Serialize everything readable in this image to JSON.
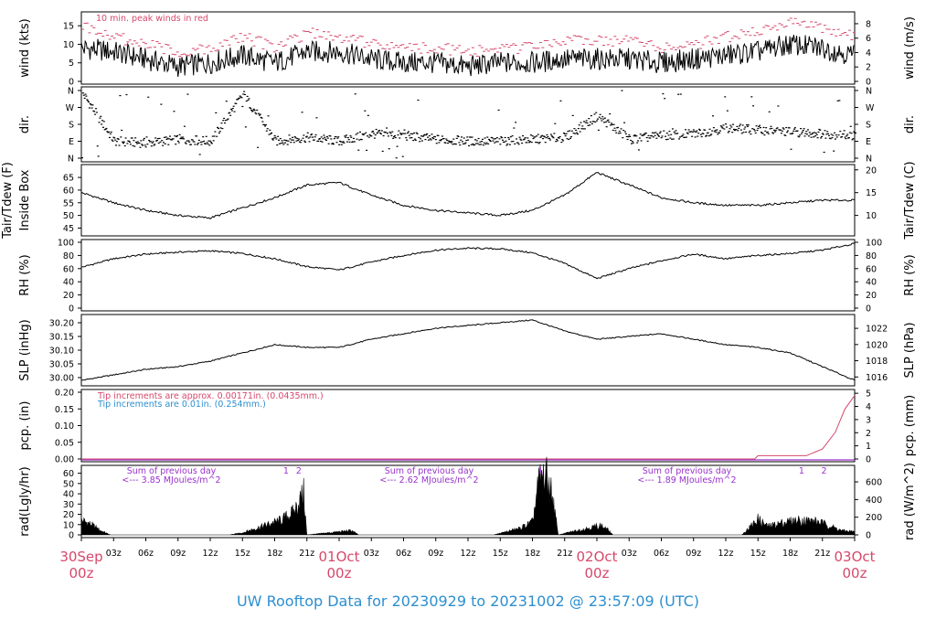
{
  "title": "UW Rooftop Data for 20230929  to  20231002 @ 23:57:09  (UTC)",
  "colors": {
    "day_label": "#d6486b",
    "peak": "#d6486b",
    "tip1": "#d6486b",
    "tip2": "#2c8fd0",
    "sum": "#9932cc",
    "title": "#2c8fd0"
  },
  "x_axis": {
    "days": [
      {
        "day": "30Sep",
        "hour": "00z",
        "index": 0
      },
      {
        "day": "01Oct",
        "hour": "00z",
        "index": 8
      },
      {
        "day": "02Oct",
        "hour": "00z",
        "index": 16
      },
      {
        "day": "03Oct",
        "hour": "00z",
        "index": 24
      }
    ],
    "hours": [
      "03z",
      "06z",
      "09z",
      "12z",
      "15z",
      "18z",
      "21z",
      "03z",
      "06z",
      "09z",
      "12z",
      "15z",
      "18z",
      "21z",
      "03z",
      "06z",
      "09z",
      "12z",
      "15z",
      "18z",
      "21z"
    ]
  },
  "chart_data": [
    {
      "type": "line",
      "name": "wind",
      "ylabel_left": "wind (kts)",
      "ylabel_right": "wind (m/s)",
      "ylim": [
        0,
        18
      ],
      "yticks_left": [
        "0",
        "5",
        "10",
        "15"
      ],
      "yticks_right": [
        "0",
        "2",
        "4",
        "6",
        "8"
      ],
      "annotation": "10 min. peak winds in red",
      "x": [
        0,
        1,
        2,
        3,
        4,
        5,
        6,
        7,
        8,
        9,
        10,
        11,
        12,
        13,
        14,
        15,
        16,
        17,
        18,
        19,
        20,
        21,
        22,
        23,
        24
      ],
      "values": [
        9,
        8,
        6,
        4,
        5,
        7,
        5,
        8,
        8,
        6,
        5,
        5,
        4,
        5,
        5,
        6,
        6,
        6,
        5,
        6,
        7,
        8,
        10,
        9,
        7
      ],
      "peak_values": [
        15,
        12,
        10,
        8,
        9,
        12,
        9,
        13,
        12,
        10,
        9,
        9,
        8,
        9,
        9,
        11,
        11,
        11,
        9,
        10,
        12,
        14,
        16,
        14,
        12
      ]
    },
    {
      "type": "scatter",
      "name": "dir.",
      "ylabel_left": "dir.",
      "ylabel_right": "dir.",
      "yticks": [
        "N",
        "E",
        "S",
        "W",
        "N"
      ],
      "x": [
        0,
        1,
        2,
        3,
        4,
        5,
        6,
        7,
        8,
        9,
        10,
        11,
        12,
        13,
        14,
        15,
        16,
        17,
        18,
        19,
        20,
        21,
        22,
        23,
        24
      ],
      "values": [
        350,
        90,
        80,
        100,
        90,
        340,
        90,
        110,
        90,
        130,
        120,
        100,
        90,
        90,
        100,
        110,
        225,
        100,
        120,
        130,
        160,
        150,
        140,
        130,
        120
      ]
    },
    {
      "type": "line",
      "name": "Tair/Tdew",
      "ylabel_left": "Tair/Tdew (F)",
      "ylabel_left2": "Inside Box",
      "ylabel_right": "Tair/Tdew (C)",
      "ylim": [
        43,
        69
      ],
      "yticks_left": [
        "45",
        "50",
        "55",
        "60",
        "65"
      ],
      "yticks_right": [
        "10",
        "15",
        "20"
      ],
      "x": [
        0,
        1,
        2,
        3,
        4,
        5,
        6,
        7,
        8,
        9,
        10,
        11,
        12,
        13,
        14,
        15,
        16,
        17,
        18,
        19,
        20,
        21,
        22,
        23,
        24
      ],
      "values": [
        59,
        55,
        52,
        50,
        49,
        53,
        57,
        62,
        63,
        58,
        54,
        52,
        51,
        50,
        52,
        58,
        67,
        62,
        57,
        55,
        54,
        54,
        55,
        56,
        56
      ]
    },
    {
      "type": "line",
      "name": "RH",
      "ylabel_left": "RH (%)",
      "ylabel_right": "RH (%)",
      "ylim": [
        0,
        100
      ],
      "yticks_left": [
        "0",
        "20",
        "40",
        "60",
        "80",
        "100"
      ],
      "yticks_right": [
        "0",
        "20",
        "40",
        "60",
        "80",
        "100"
      ],
      "x": [
        0,
        1,
        2,
        3,
        4,
        5,
        6,
        7,
        8,
        9,
        10,
        11,
        12,
        13,
        14,
        15,
        16,
        17,
        18,
        19,
        20,
        21,
        22,
        23,
        24
      ],
      "values": [
        62,
        75,
        82,
        85,
        87,
        83,
        75,
        63,
        58,
        70,
        80,
        88,
        91,
        90,
        84,
        68,
        45,
        60,
        72,
        82,
        75,
        80,
        83,
        88,
        98
      ]
    },
    {
      "type": "line",
      "name": "SLP",
      "ylabel_left": "SLP (inHg)",
      "ylabel_right": "SLP (hPa)",
      "ylim": [
        29.98,
        30.22
      ],
      "yticks_left": [
        "30.00",
        "30.05",
        "30.10",
        "30.15",
        "30.20"
      ],
      "yticks_right": [
        "1016",
        "1018",
        "1020",
        "1022"
      ],
      "x": [
        0,
        1,
        2,
        3,
        4,
        5,
        6,
        7,
        8,
        9,
        10,
        11,
        12,
        13,
        14,
        15,
        16,
        17,
        18,
        19,
        20,
        21,
        22,
        23,
        24
      ],
      "values": [
        29.99,
        30.01,
        30.03,
        30.04,
        30.06,
        30.09,
        30.12,
        30.11,
        30.11,
        30.14,
        30.16,
        30.18,
        30.19,
        30.2,
        30.21,
        30.17,
        30.14,
        30.15,
        30.16,
        30.14,
        30.12,
        30.11,
        30.09,
        30.04,
        29.99
      ]
    },
    {
      "type": "line",
      "name": "pcp",
      "ylabel_left": "pcp. (in)",
      "ylabel_right": "pcp. (mm)",
      "ylim": [
        0,
        0.2
      ],
      "yticks_left": [
        "0.00",
        "0.05",
        "0.10",
        "0.15",
        "0.20"
      ],
      "yticks_right": [
        "0",
        "1",
        "2",
        "3",
        "4",
        "5"
      ],
      "notes": [
        "Tip increments are approx. 0.00171in. (0.0435mm.)",
        "Tip increments are 0.01in. (0.254mm.)"
      ],
      "x": [
        0,
        20.9,
        21,
        22,
        22.5,
        23,
        23.4,
        23.7,
        24
      ],
      "values": [
        0,
        0,
        0.01,
        0.01,
        0.01,
        0.03,
        0.08,
        0.15,
        0.19
      ]
    },
    {
      "type": "area",
      "name": "rad",
      "ylabel_left": "rad(Lgly/hr)",
      "ylabel_right": "rad (W/m^2)",
      "ylim": [
        0,
        65
      ],
      "yticks_left": [
        "0",
        "10",
        "20",
        "30",
        "40",
        "50",
        "60"
      ],
      "yticks_right": [
        "0",
        "200",
        "400",
        "600"
      ],
      "sums": [
        {
          "label": "Sum of previous day",
          "value": "<--- 3.85 MJoules/m^2",
          "x": 2.0
        },
        {
          "label": "Sum of previous day",
          "value": "<--- 2.62 MJoules/m^2",
          "x": 10.0
        },
        {
          "label": "Sum of previous day",
          "value": "<--- 1.89 MJoules/m^2",
          "x": 18.0
        }
      ],
      "markers": [
        {
          "text": "1",
          "x": 6.35
        },
        {
          "text": "2",
          "x": 6.75
        },
        {
          "text": "1",
          "x": 14.25
        },
        {
          "text": "1",
          "x": 22.35
        },
        {
          "text": "2",
          "x": 23.05
        }
      ],
      "x": [
        0,
        0.3,
        0.6,
        0.9,
        4.6,
        5.0,
        5.4,
        5.8,
        6.2,
        6.6,
        6.9,
        7.0,
        8.4,
        8.6,
        12.8,
        13.2,
        13.6,
        14.0,
        14.2,
        14.4,
        14.6,
        14.8,
        16.1,
        16.3,
        16.5,
        20.5,
        21.0,
        21.3,
        21.8,
        22.3,
        22.8,
        23.2,
        23.6,
        24
      ],
      "values": [
        14,
        10,
        4,
        0,
        0,
        2,
        6,
        10,
        14,
        22,
        40,
        0,
        4,
        0,
        0,
        3,
        6,
        12,
        50,
        58,
        40,
        0,
        9,
        6,
        0,
        0,
        15,
        8,
        12,
        14,
        13,
        9,
        4,
        3
      ]
    }
  ]
}
